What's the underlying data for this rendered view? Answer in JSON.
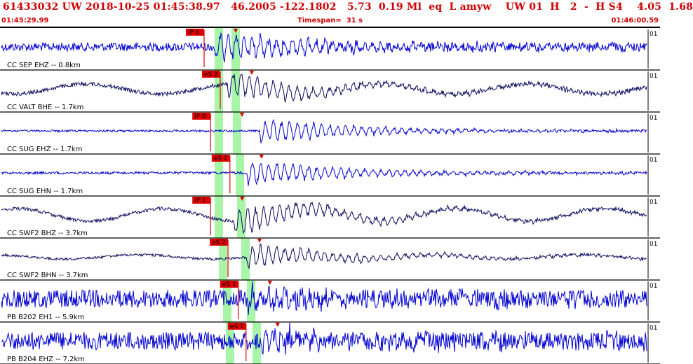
{
  "header": {
    "title": "61433032 UW 2018-10-25 01:45:38.97   46.2005 -122.1802   5.73  0.19 Ml  eq  L amyw    UW 01  H   2  -  H S4    4.05  1.68",
    "start_time": "01:45:29.99",
    "timespan": "Timespan=  31 s",
    "end_time": "01:46:00.59"
  },
  "colors": {
    "header_text": "#d00000",
    "trace_blue": "#0000d0",
    "trace_navy": "#0a0a60",
    "pick_red": "#e00000",
    "window_green": "#a8f5a8"
  },
  "channels": [
    {
      "label": "CC SEP EHZ -- 0.8km",
      "scale": "01",
      "color": "blue",
      "amp": 6,
      "noise": 0.5,
      "arrival": 0.33,
      "burst": 20,
      "swell": 0,
      "picks": [
        {
          "label": "iP 0",
          "pos": 0.325
        }
      ]
    },
    {
      "label": "CC VALT BHE -- 1.7km",
      "scale": "01",
      "color": "navy",
      "amp": 4,
      "noise": 0.35,
      "arrival": 0.35,
      "burst": 18,
      "swell": 7,
      "picks": [
        {
          "label": "eS 2",
          "pos": 0.35
        }
      ]
    },
    {
      "label": "CC SUG EHZ -- 1.7km",
      "scale": "01",
      "color": "blue",
      "amp": 3,
      "noise": 0.25,
      "arrival": 0.4,
      "burst": 18,
      "swell": 0,
      "picks": [
        {
          "label": "iP 0",
          "pos": 0.335
        }
      ]
    },
    {
      "label": "CC SUG EHN -- 1.7km",
      "scale": "01",
      "color": "blue",
      "amp": 3,
      "noise": 0.3,
      "arrival": 0.38,
      "burst": 18,
      "swell": 0,
      "picks": [
        {
          "label": "eS 1",
          "pos": 0.365
        }
      ]
    },
    {
      "label": "CC SWF2 BHZ -- 3.7km",
      "scale": "01",
      "color": "navy",
      "amp": 4,
      "noise": 0.3,
      "arrival": 0.36,
      "burst": 20,
      "swell": 9,
      "picks": [
        {
          "label": "iP 1",
          "pos": 0.335
        }
      ]
    },
    {
      "label": "CC SWF2 BHN -- 3.7km",
      "scale": "01",
      "color": "navy",
      "amp": 3,
      "noise": 0.3,
      "arrival": 0.38,
      "burst": 16,
      "swell": 3,
      "picks": [
        {
          "label": "eS 2",
          "pos": 0.362
        }
      ]
    },
    {
      "label": "PB B202 EH1 -- 5.9km",
      "scale": "01",
      "color": "blue",
      "amp": 8,
      "noise": 0.8,
      "arrival": 0.38,
      "burst": 14,
      "swell": 0,
      "picks": [
        {
          "label": "eS 1",
          "pos": 0.378
        }
      ]
    },
    {
      "label": "PB B204 EHZ -- 7.2km",
      "scale": "01",
      "color": "blue",
      "amp": 8,
      "noise": 0.8,
      "arrival": 0.4,
      "burst": 14,
      "swell": 0,
      "picks": [
        {
          "label": "eS 1",
          "pos": 0.39
        }
      ]
    }
  ]
}
